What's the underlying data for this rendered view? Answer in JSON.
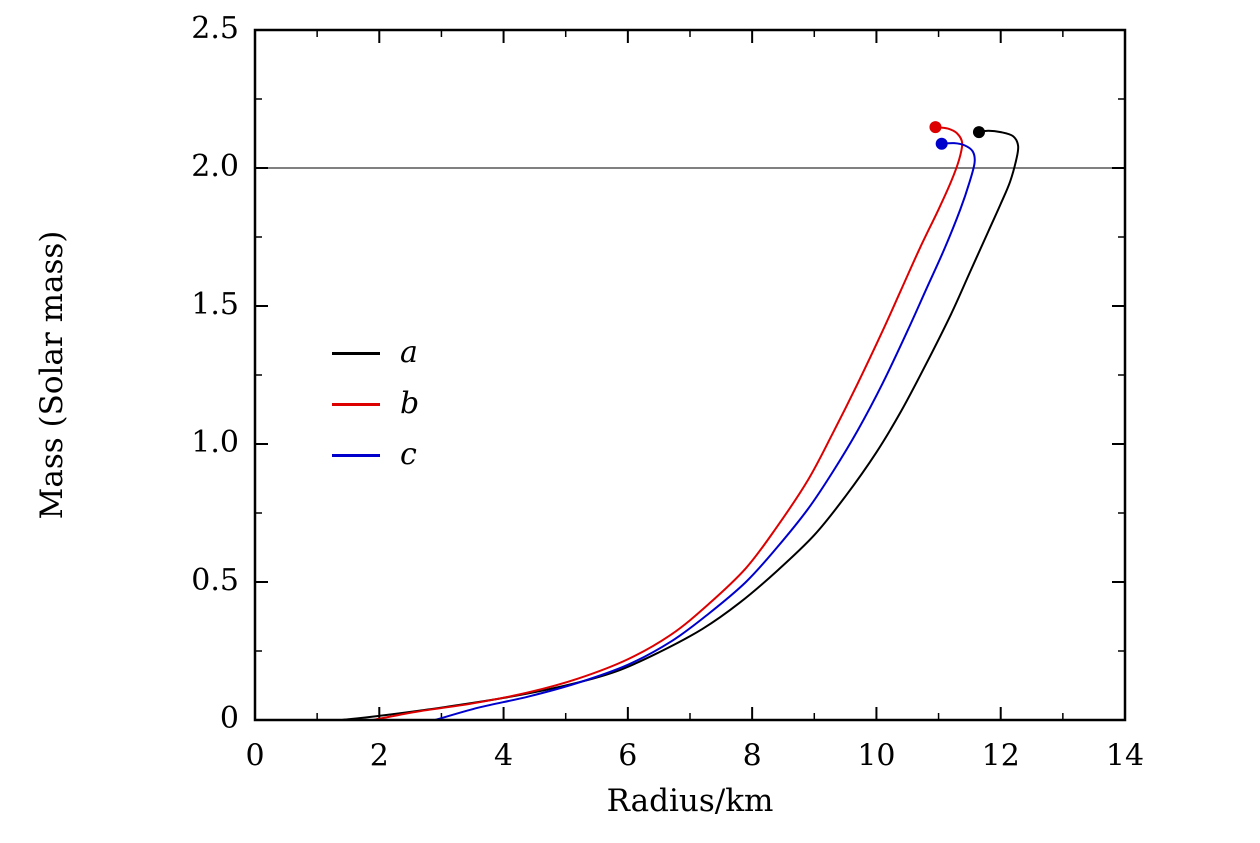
{
  "chart_data": {
    "type": "line",
    "title": "",
    "xlabel": "Radius/km",
    "ylabel": "Mass (Solar mass)",
    "xlim": [
      0,
      14
    ],
    "ylim": [
      0,
      2.5
    ],
    "xticks": [
      0,
      2,
      4,
      6,
      8,
      10,
      12,
      14
    ],
    "xtick_labels": [
      "0",
      "2",
      "4",
      "6",
      "8",
      "10",
      "12",
      "14"
    ],
    "x_minor_ticks": [
      1,
      3,
      5,
      7,
      9,
      11,
      13
    ],
    "yticks": [
      0,
      0.5,
      1.0,
      1.5,
      2.0,
      2.5
    ],
    "ytick_labels": [
      "0",
      "0.5",
      "1.0",
      "1.5",
      "2.0",
      "2.5"
    ],
    "y_minor_ticks": [
      0.25,
      0.75,
      1.25,
      1.75,
      2.25
    ],
    "grid": false,
    "frame": true,
    "reference_line": {
      "y": 2.0,
      "color": "#000000",
      "width": 1
    },
    "legend": {
      "position": "left-center"
    },
    "series": [
      {
        "name": "a",
        "color": "#000000",
        "line_width": 2,
        "max_point": [
          11.65,
          2.13
        ],
        "points": [
          [
            1.4,
            0.0
          ],
          [
            2.0,
            0.015
          ],
          [
            3.0,
            0.045
          ],
          [
            4.0,
            0.08
          ],
          [
            5.0,
            0.125
          ],
          [
            5.8,
            0.175
          ],
          [
            6.5,
            0.245
          ],
          [
            7.2,
            0.33
          ],
          [
            7.8,
            0.425
          ],
          [
            8.4,
            0.54
          ],
          [
            9.0,
            0.67
          ],
          [
            9.5,
            0.81
          ],
          [
            10.0,
            0.97
          ],
          [
            10.4,
            1.12
          ],
          [
            10.8,
            1.29
          ],
          [
            11.2,
            1.47
          ],
          [
            11.5,
            1.62
          ],
          [
            11.8,
            1.77
          ],
          [
            12.0,
            1.87
          ],
          [
            12.15,
            1.95
          ],
          [
            12.25,
            2.03
          ],
          [
            12.28,
            2.08
          ],
          [
            12.2,
            2.115
          ],
          [
            12.0,
            2.13
          ],
          [
            11.8,
            2.135
          ],
          [
            11.65,
            2.13
          ]
        ]
      },
      {
        "name": "b",
        "color": "#dd0000",
        "line_width": 2,
        "max_point": [
          10.95,
          2.148
        ],
        "points": [
          [
            1.9,
            0.0
          ],
          [
            2.6,
            0.03
          ],
          [
            3.5,
            0.06
          ],
          [
            4.4,
            0.1
          ],
          [
            5.2,
            0.15
          ],
          [
            6.0,
            0.22
          ],
          [
            6.7,
            0.31
          ],
          [
            7.3,
            0.42
          ],
          [
            7.9,
            0.55
          ],
          [
            8.4,
            0.7
          ],
          [
            8.9,
            0.87
          ],
          [
            9.3,
            1.04
          ],
          [
            9.7,
            1.22
          ],
          [
            10.1,
            1.41
          ],
          [
            10.4,
            1.56
          ],
          [
            10.7,
            1.71
          ],
          [
            11.0,
            1.85
          ],
          [
            11.2,
            1.95
          ],
          [
            11.33,
            2.03
          ],
          [
            11.38,
            2.09
          ],
          [
            11.3,
            2.125
          ],
          [
            11.15,
            2.143
          ],
          [
            10.95,
            2.148
          ]
        ]
      },
      {
        "name": "c",
        "color": "#0000cc",
        "line_width": 2,
        "max_point": [
          11.05,
          2.088
        ],
        "points": [
          [
            2.9,
            0.0
          ],
          [
            3.6,
            0.045
          ],
          [
            4.4,
            0.085
          ],
          [
            5.2,
            0.135
          ],
          [
            6.0,
            0.2
          ],
          [
            6.7,
            0.285
          ],
          [
            7.3,
            0.385
          ],
          [
            7.9,
            0.5
          ],
          [
            8.4,
            0.625
          ],
          [
            8.9,
            0.765
          ],
          [
            9.3,
            0.9
          ],
          [
            9.7,
            1.05
          ],
          [
            10.1,
            1.22
          ],
          [
            10.5,
            1.41
          ],
          [
            10.8,
            1.56
          ],
          [
            11.1,
            1.71
          ],
          [
            11.35,
            1.85
          ],
          [
            11.5,
            1.95
          ],
          [
            11.58,
            2.02
          ],
          [
            11.55,
            2.06
          ],
          [
            11.42,
            2.082
          ],
          [
            11.25,
            2.09
          ],
          [
            11.05,
            2.088
          ]
        ]
      }
    ]
  }
}
